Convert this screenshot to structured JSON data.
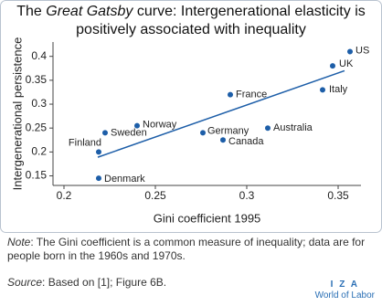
{
  "chart_data": {
    "type": "scatter",
    "title": {
      "before": "The ",
      "italic": "Great Gatsby",
      "after": " curve: Intergenerational elasticity is",
      "line2": "positively associated with inequality"
    },
    "x_label": "Gini coefficient 1995",
    "y_label": "Intergenerational persistence",
    "points": {
      "color": "#1d5ea8",
      "labels": [
        "US",
        "UK",
        "Italy",
        "Australia",
        "France",
        "Germany",
        "Canada",
        "Norway",
        "Sweden",
        "Finland",
        "Denmark"
      ],
      "x": [
        0.3565,
        0.347,
        0.3415,
        0.3115,
        0.291,
        0.276,
        0.287,
        0.24,
        0.2225,
        0.219,
        0.219
      ],
      "values": [
        0.41,
        0.38,
        0.33,
        0.25,
        0.32,
        0.24,
        0.225,
        0.255,
        0.24,
        0.2,
        0.145
      ]
    },
    "trend": {
      "color": "#1d5ea8",
      "x": [
        0.2185,
        0.3535
      ],
      "values": [
        0.189,
        0.37
      ]
    },
    "xlim": [
      0.194,
      0.3625
    ],
    "xticks": [
      0.2,
      0.25,
      0.3,
      0.35
    ],
    "ylim": [
      0.13,
      0.43
    ],
    "yticks": [
      0.15,
      0.2,
      0.25,
      0.3,
      0.35,
      0.4
    ]
  },
  "note": {
    "label": "Note",
    "text": ": The Gini coefficient is a common measure of inequality; data are for people born in the 1960s and 1970s."
  },
  "source": {
    "label": "Source",
    "text": ": Based on [1]; Figure 6B."
  },
  "logo": {
    "name": "I Z A",
    "subtitle": "World of Labor"
  }
}
